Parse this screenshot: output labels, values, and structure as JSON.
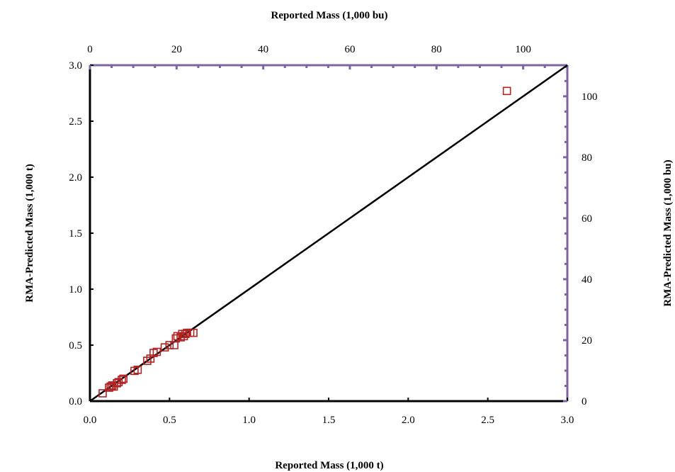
{
  "chart_data": {
    "type": "scatter",
    "xlabel": "Reported Mass (1,000 t)",
    "ylabel": "RMA-Predicted Mass (1,000 t)",
    "x2label": "Reported Mass (1,000 bu)",
    "y2label": "RMA-Predicted Mass (1,000 bu)",
    "xlim": [
      0,
      3
    ],
    "ylim": [
      0,
      3
    ],
    "x2lim": [
      0,
      110.2
    ],
    "y2lim": [
      0,
      110.2
    ],
    "xticks": [
      "0.0",
      "0.5",
      "1.0",
      "1.5",
      "2.0",
      "2.5",
      "3.0"
    ],
    "yticks": [
      "0.0",
      "0.5",
      "1.0",
      "1.5",
      "2.0",
      "2.5",
      "3.0"
    ],
    "x2ticks": [
      "0",
      "20",
      "40",
      "60",
      "80",
      "100"
    ],
    "y2ticks": [
      "0",
      "20",
      "40",
      "60",
      "80",
      "100"
    ],
    "grid": false,
    "reference_line": {
      "type": "1:1",
      "x": [
        0,
        3
      ],
      "y": [
        0,
        3
      ]
    },
    "series": [
      {
        "marker": "square-open",
        "color": "#b22222",
        "points": [
          [
            0.08,
            0.07
          ],
          [
            0.12,
            0.12
          ],
          [
            0.13,
            0.13
          ],
          [
            0.14,
            0.14
          ],
          [
            0.15,
            0.13
          ],
          [
            0.17,
            0.16
          ],
          [
            0.18,
            0.17
          ],
          [
            0.2,
            0.19
          ],
          [
            0.21,
            0.2
          ],
          [
            0.28,
            0.27
          ],
          [
            0.3,
            0.28
          ],
          [
            0.36,
            0.36
          ],
          [
            0.38,
            0.38
          ],
          [
            0.4,
            0.43
          ],
          [
            0.42,
            0.44
          ],
          [
            0.47,
            0.48
          ],
          [
            0.5,
            0.5
          ],
          [
            0.53,
            0.5
          ],
          [
            0.54,
            0.56
          ],
          [
            0.55,
            0.58
          ],
          [
            0.57,
            0.57
          ],
          [
            0.58,
            0.6
          ],
          [
            0.59,
            0.58
          ],
          [
            0.6,
            0.6
          ],
          [
            0.61,
            0.61
          ],
          [
            0.63,
            0.61
          ],
          [
            0.65,
            0.61
          ],
          [
            2.62,
            2.77
          ]
        ]
      }
    ]
  },
  "colors": {
    "primary_axis": "#000000",
    "secondary_axis": "#8064a2",
    "marker": "#b22222",
    "reference_line": "#000000"
  }
}
